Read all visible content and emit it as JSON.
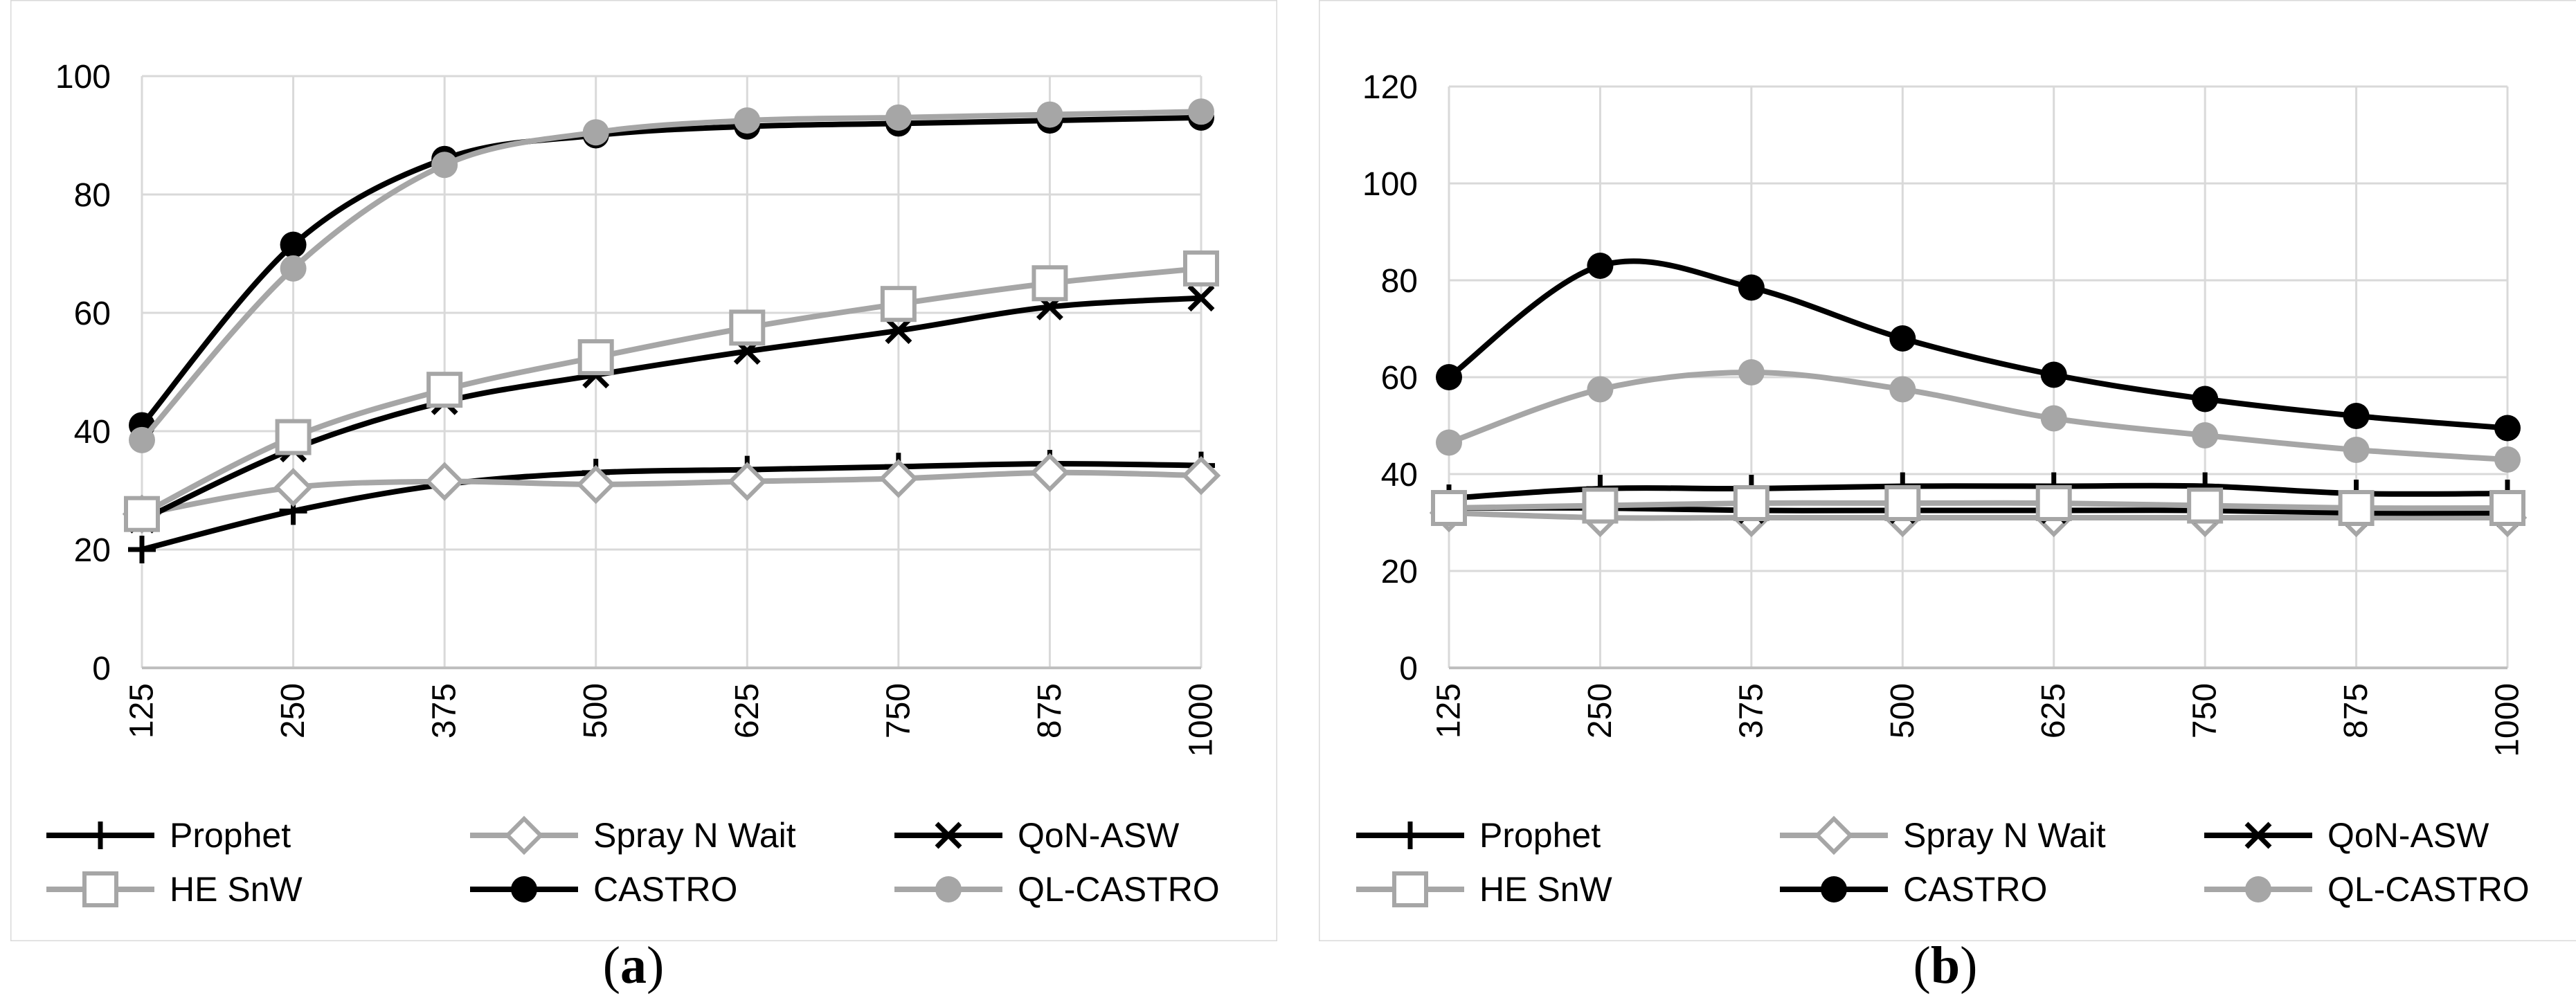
{
  "charts": [
    {
      "id": "a",
      "caption_letter": "a",
      "chart_data": {
        "type": "line",
        "x": [
          125,
          250,
          375,
          500,
          625,
          750,
          875,
          1000
        ],
        "ylim": [
          0,
          100
        ],
        "yticks": [
          0,
          20,
          40,
          60,
          80,
          100
        ],
        "grid": true,
        "legend_position": "bottom",
        "series": [
          {
            "name": "Prophet",
            "values": [
              20,
              26.5,
              31,
              33,
              33.5,
              34,
              34.5,
              34.2
            ],
            "color": "#000000",
            "marker": "plus"
          },
          {
            "name": "Spray N Wait",
            "values": [
              26,
              30.5,
              31.5,
              31,
              31.5,
              32,
              33,
              32.5
            ],
            "color": "#a6a6a6",
            "marker": "diamond"
          },
          {
            "name": "QoN-ASW",
            "values": [
              25,
              37,
              45,
              49.5,
              53.5,
              57,
              61,
              62.5
            ],
            "color": "#000000",
            "marker": "cross"
          },
          {
            "name": "HE SnW",
            "values": [
              26,
              39,
              47,
              52.5,
              57.5,
              61.5,
              65,
              67.5
            ],
            "color": "#a6a6a6",
            "marker": "square"
          },
          {
            "name": "CASTRO",
            "values": [
              41,
              71.5,
              86,
              90,
              91.5,
              92,
              92.5,
              93
            ],
            "color": "#000000",
            "marker": "circle"
          },
          {
            "name": "QL-CASTRO",
            "values": [
              38.5,
              67.5,
              85,
              90.5,
              92.5,
              93,
              93.5,
              94
            ],
            "color": "#a6a6a6",
            "marker": "circle"
          }
        ]
      }
    },
    {
      "id": "b",
      "caption_letter": "b",
      "chart_data": {
        "type": "line",
        "x": [
          125,
          250,
          375,
          500,
          625,
          750,
          875,
          1000
        ],
        "ylim": [
          0,
          120
        ],
        "yticks": [
          0,
          20,
          40,
          60,
          80,
          100,
          120
        ],
        "grid": true,
        "legend_position": "bottom",
        "series": [
          {
            "name": "Prophet",
            "values": [
              35,
              37,
              37,
              37.5,
              37.5,
              37.5,
              36,
              36
            ],
            "color": "#000000",
            "marker": "plus"
          },
          {
            "name": "Spray N Wait",
            "values": [
              32,
              31,
              31,
              31,
              31,
              31,
              31,
              31
            ],
            "color": "#a6a6a6",
            "marker": "diamond"
          },
          {
            "name": "QoN-ASW",
            "values": [
              33,
              33,
              32.5,
              32.5,
              32.5,
              32.5,
              32,
              32
            ],
            "color": "#000000",
            "marker": "cross"
          },
          {
            "name": "HE SnW",
            "values": [
              33,
              33.5,
              34,
              34,
              34,
              33.5,
              33,
              33
            ],
            "color": "#a6a6a6",
            "marker": "square"
          },
          {
            "name": "CASTRO",
            "values": [
              60,
              83,
              78.5,
              68,
              60.5,
              55.5,
              52,
              49.5
            ],
            "color": "#000000",
            "marker": "circle"
          },
          {
            "name": "QL-CASTRO",
            "values": [
              46.5,
              57.5,
              61,
              57.5,
              51.5,
              48,
              45,
              43
            ],
            "color": "#a6a6a6",
            "marker": "circle"
          }
        ]
      }
    }
  ]
}
